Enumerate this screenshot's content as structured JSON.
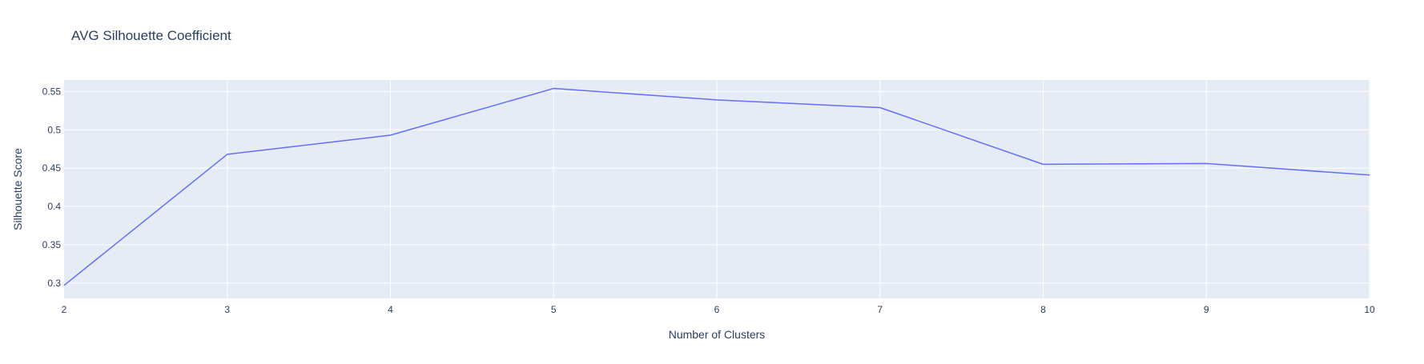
{
  "chart_data": {
    "type": "line",
    "title": "AVG Silhouette Coefficient",
    "xlabel": "Number of Clusters",
    "ylabel": "Silhouette Score",
    "x": [
      2,
      3,
      4,
      5,
      6,
      7,
      8,
      9,
      10
    ],
    "series": [
      {
        "values": [
          0.297,
          0.468,
          0.493,
          0.554,
          0.539,
          0.529,
          0.455,
          0.456,
          0.441
        ]
      }
    ],
    "xlim": [
      2,
      10
    ],
    "ylim": [
      0.28,
      0.565
    ],
    "x_ticks": [
      "2",
      "3",
      "4",
      "5",
      "6",
      "7",
      "8",
      "9",
      "10"
    ],
    "y_ticks": [
      "0.3",
      "0.35",
      "0.4",
      "0.45",
      "0.5",
      "0.55"
    ],
    "grid": true,
    "line_color": "#636efa",
    "plot_bg": "#e5ecf6",
    "grid_color": "#ffffff"
  }
}
